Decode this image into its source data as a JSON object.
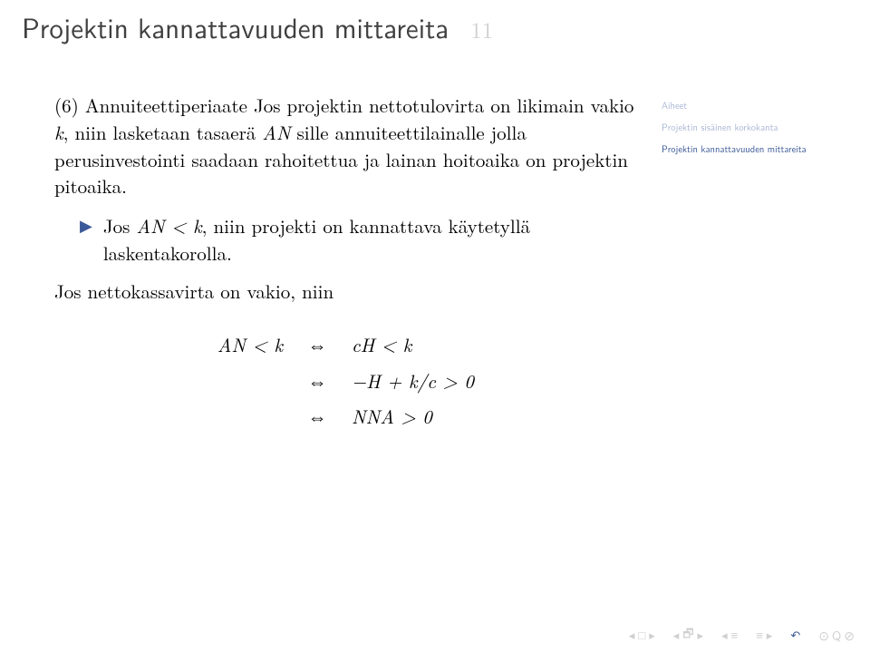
{
  "title": {
    "text": "Projektin kannattavuuden mittareita",
    "num": "11"
  },
  "para1_parts": {
    "p1": "(6) Annuiteettiperiaate Jos projektin nettotulovirta on likimain vakio ",
    "k": "k",
    "p2": ", niin lasketaan tasaerä ",
    "AN": "AN",
    "p3": " sille annuiteettilainalle jolla perusinvestointi saadaan rahoitettua ja lainan hoitoaika on projektin pitoaika."
  },
  "bullet_parts": {
    "b1": "Jos ",
    "AN": "AN",
    "lt": " < ",
    "k": "k",
    "b2": ", niin projekti on kannattava käytetyllä laskentakorolla."
  },
  "para2": "Jos nettokassavirta on vakio, niin",
  "math": {
    "r1_left": "AN < k",
    "r1_right": "cH < k",
    "r2_right": "−H + k/c > 0",
    "r3_right": "NNA > 0",
    "iff": "⇔"
  },
  "sidebar": {
    "head": "Aiheet",
    "item1": "Projektin sisäinen korkokanta",
    "item2": "Projektin kannattavuuden mittareita"
  }
}
